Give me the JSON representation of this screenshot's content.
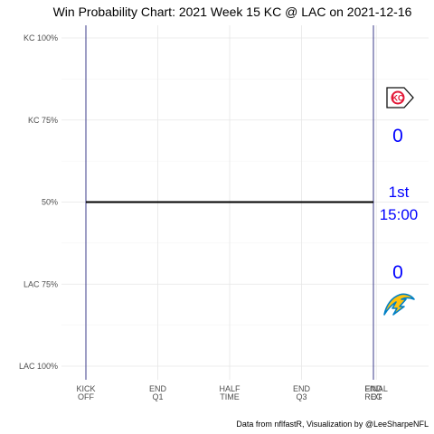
{
  "chart_data": {
    "type": "line",
    "title": "Win Probability Chart: 2021 Week 15 KC @ LAC on 2021-12-16",
    "caption": "Data from nflfastR, Visualization by @LeeSharpeNFL",
    "xlabel": "",
    "ylabel": "",
    "xlim": [
      0,
      4
    ],
    "ylim": [
      0,
      1
    ],
    "y_ticks": [
      {
        "value": 1.0,
        "label": "KC 100%"
      },
      {
        "value": 0.75,
        "label": "KC 75%"
      },
      {
        "value": 0.5,
        "label": "50%"
      },
      {
        "value": 0.25,
        "label": "LAC 75%"
      },
      {
        "value": 0.0,
        "label": "LAC 100%"
      }
    ],
    "y_minor": [
      0.875,
      0.625,
      0.375,
      0.125
    ],
    "x_ticks": [
      {
        "value": 0,
        "label": [
          "KICK",
          "OFF"
        ]
      },
      {
        "value": 1,
        "label": [
          "END",
          "Q1"
        ]
      },
      {
        "value": 2,
        "label": [
          "HALF",
          "TIME"
        ]
      },
      {
        "value": 3,
        "label": [
          "END",
          "Q3"
        ]
      },
      {
        "value": 4,
        "label": [
          "END",
          "REG"
        ]
      },
      {
        "value": 4.04,
        "label": [
          "FINAL",
          "OT"
        ]
      }
    ],
    "vertical_lines": [
      0,
      4
    ],
    "series": [
      {
        "x": [
          0,
          4
        ],
        "y": [
          0.5,
          0.5
        ],
        "color": "#000000"
      }
    ],
    "grid": true,
    "annotations": {
      "away_team": "KC",
      "home_team": "LAC",
      "away_score": "0",
      "home_score": "0",
      "quarter": "1st",
      "clock": "15:00"
    },
    "colors": {
      "vline": "#3b3b8a",
      "annotation": "#0000ff",
      "kc_red": "#e31837",
      "lac_blue": "#0080c6",
      "lac_gold": "#ffc20e"
    }
  }
}
